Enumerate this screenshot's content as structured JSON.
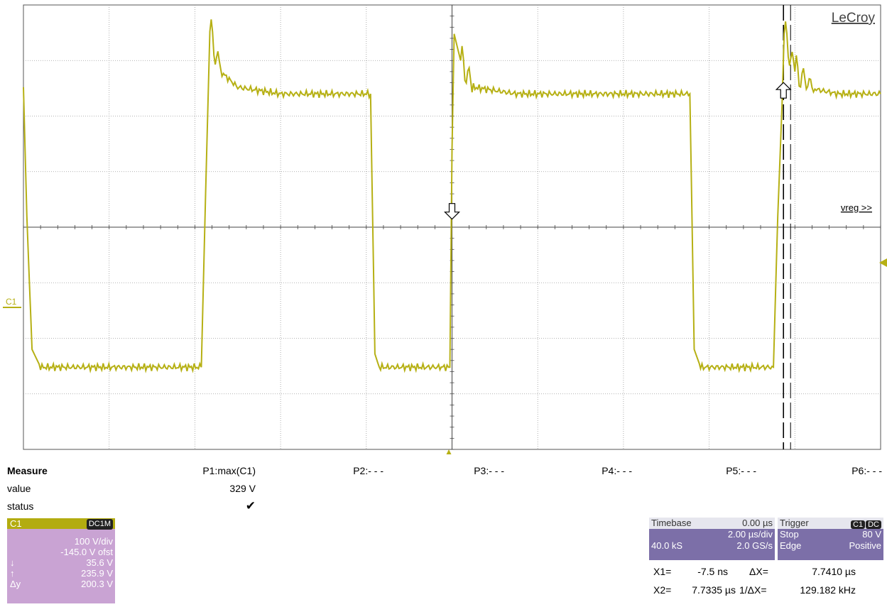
{
  "brand": "LeCroy",
  "level_label": "vreg >>",
  "channel_marker": "C1",
  "measure": {
    "header": "Measure",
    "row_labels": [
      "value",
      "status"
    ],
    "params": [
      {
        "label": "P1:max(C1)",
        "value": "329 V",
        "status": "✔"
      },
      {
        "label": "P2:- - -"
      },
      {
        "label": "P3:- - -"
      },
      {
        "label": "P4:- - -"
      },
      {
        "label": "P5:- - -"
      },
      {
        "label": "P6:- - -"
      }
    ]
  },
  "channel_panel": {
    "name": "C1",
    "coupling": "DC1M",
    "scale": "100 V/div",
    "offset": "-145.0 V ofst",
    "cursor_low_symbol": "↓",
    "cursor_low": "35.6 V",
    "cursor_high_symbol": "↑",
    "cursor_high": "235.9 V",
    "delta_symbol": "Δy",
    "delta": "200.3 V"
  },
  "timebase": {
    "label": "Timebase",
    "delay": "0.00 µs",
    "per_div": "2.00 µs/div",
    "samples": "40.0 kS",
    "rate": "2.0 GS/s"
  },
  "trigger": {
    "label": "Trigger",
    "source": "C1",
    "coupling": "DC",
    "mode": "Stop",
    "level": "80 V",
    "type": "Edge",
    "slope": "Positive"
  },
  "cursors": {
    "x1_label": "X1=",
    "x1": "-7.5 ns",
    "dx_label": "ΔX=",
    "dx": "7.7410 µs",
    "x2_label": "X2=",
    "x2": "7.7335 µs",
    "inv_label": "1/ΔX=",
    "inv": "129.182 kHz"
  },
  "colors": {
    "trace": "#b6b014",
    "grid": "#9a9a9a",
    "panel": "#c9a3d3",
    "status_bar": "#7c6fa8"
  },
  "chart_data": {
    "type": "line",
    "xlim": [
      -10,
      10
    ],
    "ylim": [
      -255,
      -55
    ],
    "x_unit": "µs",
    "y_unit": "V",
    "series": [
      {
        "color": "#b6b014",
        "x": [
          -10.0,
          -9.92,
          -9.8,
          -9.6,
          -5.85,
          -5.75,
          -5.65,
          -5.4,
          -5.0,
          -4.0,
          -3.0,
          -1.9,
          -1.8,
          -1.7,
          -0.05,
          0.0,
          0.05,
          0.2,
          0.5,
          1.5,
          3.0,
          5.55,
          5.65,
          5.8,
          7.5,
          7.6,
          7.7,
          7.75,
          8.0,
          8.5,
          9.0,
          10.0
        ],
        "y": [
          -92,
          -150,
          -210,
          -218,
          -218,
          -140,
          -67,
          -85,
          -92,
          -95,
          -95,
          -95,
          -212,
          -218,
          -218,
          -120,
          -68,
          -80,
          -92,
          -95,
          -95,
          -95,
          -210,
          -218,
          -218,
          -150,
          -100,
          -68,
          -85,
          -93,
          -95,
          -95
        ]
      }
    ],
    "levels": [
      {
        "label": "vreg",
        "y": -95
      },
      {
        "label": "C1",
        "y": -145
      }
    ],
    "cursor_x": [
      0.0,
      7.7335
    ]
  }
}
